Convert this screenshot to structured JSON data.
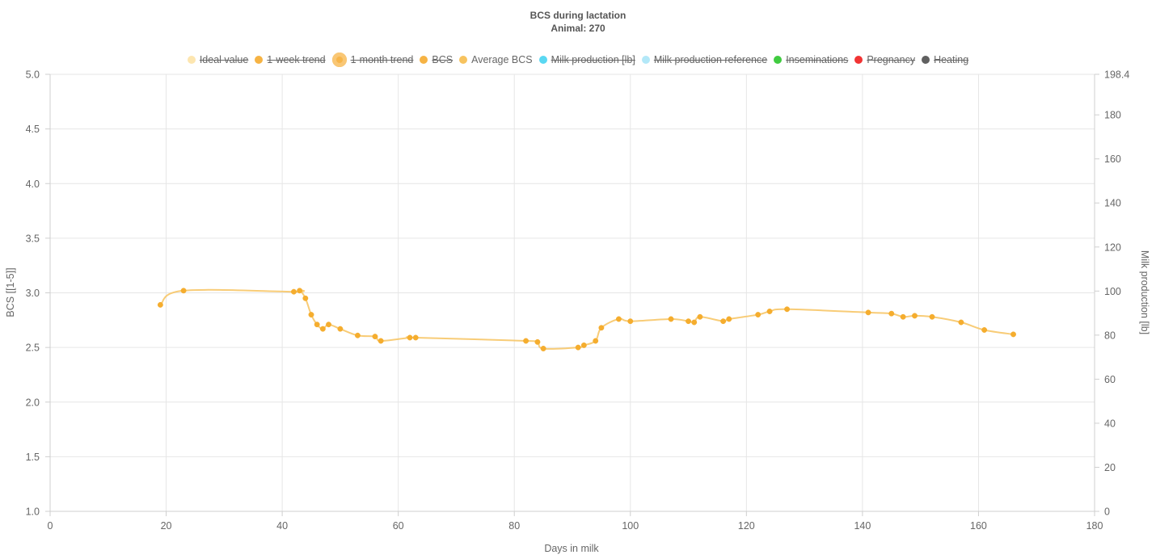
{
  "title": "BCS during lactation",
  "subtitle": "Animal: 270",
  "legend": [
    {
      "label": "Ideal value",
      "color": "#fde3a7",
      "hidden": true
    },
    {
      "label": "1-week trend",
      "color": "#f5a623",
      "hidden": true
    },
    {
      "label": "1-month trend",
      "color": "#f7b54a",
      "hidden": true,
      "big": true
    },
    {
      "label": "BCS",
      "color": "#f5a623",
      "hidden": true
    },
    {
      "label": "Average BCS",
      "color": "#f7c35f",
      "hidden": false
    },
    {
      "label": "Milk production [lb]",
      "color": "#3dd1f0",
      "hidden": true
    },
    {
      "label": "Milk production reference",
      "color": "#a6e4f7",
      "hidden": true
    },
    {
      "label": "Inseminations",
      "color": "#1ec21e",
      "hidden": true
    },
    {
      "label": "Pregnancy",
      "color": "#ee1111",
      "hidden": true
    },
    {
      "label": "Heating",
      "color": "#444444",
      "hidden": true
    }
  ],
  "chart_data": {
    "type": "line",
    "title": "BCS during lactation",
    "subtitle": "Animal: 270",
    "xlabel": "Days in milk",
    "ylabel": "BCS [[1-5]]",
    "y2label": "Milk production [lb]",
    "xlim": [
      0,
      180
    ],
    "ylim": [
      1.0,
      5.0
    ],
    "y2lim": [
      0,
      198.4
    ],
    "xticks": [
      "0",
      "20",
      "40",
      "60",
      "80",
      "100",
      "120",
      "140",
      "160",
      "180"
    ],
    "yticks": [
      "1.0",
      "1.5",
      "2.0",
      "2.5",
      "3.0",
      "3.5",
      "4.0",
      "4.5",
      "5.0"
    ],
    "y2ticks": [
      "0",
      "20",
      "40",
      "60",
      "80",
      "100",
      "120",
      "140",
      "160",
      "180",
      "198.4"
    ],
    "grid": true,
    "legend_position": "top",
    "series": [
      {
        "name": "Average BCS",
        "color": "#f7c35f",
        "x": [
          19,
          23,
          42,
          43,
          44,
          45,
          46,
          47,
          48,
          50,
          53,
          56,
          57,
          62,
          63,
          82,
          84,
          85,
          91,
          92,
          94,
          95,
          98,
          100,
          107,
          110,
          111,
          112,
          116,
          117,
          122,
          124,
          127,
          141,
          145,
          147,
          149,
          152,
          157,
          161,
          166
        ],
        "y": [
          2.89,
          3.02,
          3.01,
          3.02,
          2.95,
          2.8,
          2.71,
          2.67,
          2.71,
          2.67,
          2.61,
          2.6,
          2.56,
          2.59,
          2.59,
          2.56,
          2.55,
          2.49,
          2.5,
          2.52,
          2.56,
          2.68,
          2.76,
          2.74,
          2.76,
          2.74,
          2.73,
          2.78,
          2.74,
          2.76,
          2.8,
          2.83,
          2.85,
          2.82,
          2.81,
          2.78,
          2.79,
          2.78,
          2.73,
          2.66,
          2.62
        ]
      }
    ]
  }
}
